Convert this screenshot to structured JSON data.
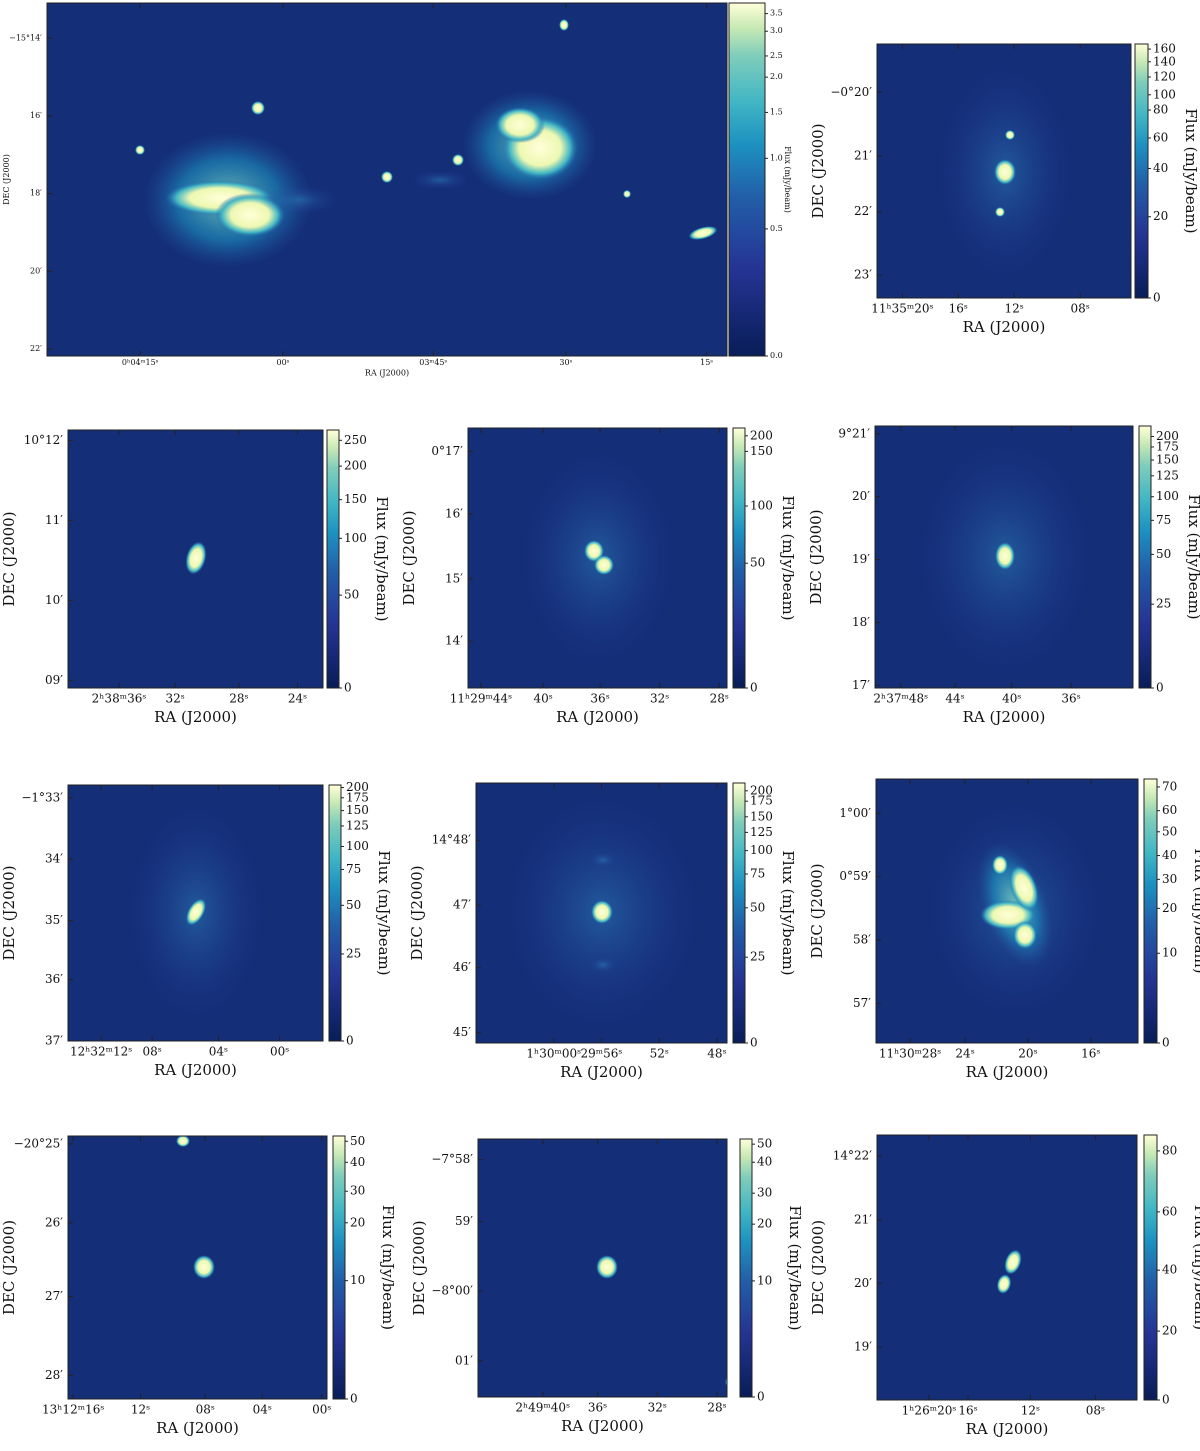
{
  "panels": [
    {
      "y_label": "DEC (J2000)",
      "x_label": "RA (J2000)",
      "colorbar_label": "Flux (mJy/beam)",
      "y_ticks": [
        "−15°14′",
        "16′",
        "18′",
        "20′",
        "22′"
      ],
      "x_ticks": [
        "0ʰ04ᵐ15ˢ",
        "00ˢ",
        "03ᵐ45ˢ",
        "30ˢ",
        "15ˢ"
      ],
      "colorbar_ticks": [
        "0.0",
        "0.5",
        "1.0",
        "1.5",
        "2.0",
        "2.5",
        "3.0",
        "3.5"
      ]
    },
    {
      "y_label": "DEC (J2000)",
      "x_label": "RA (J2000)",
      "colorbar_label": "Flux (mJy/beam)",
      "y_ticks": [
        "−0°20′",
        "21′",
        "22′",
        "23′"
      ],
      "x_ticks": [
        "11ʰ35ᵐ20ˢ",
        "16ˢ",
        "12ˢ",
        "08ˢ"
      ],
      "colorbar_ticks": [
        "0",
        "20",
        "40",
        "60",
        "80",
        "100",
        "120",
        "140",
        "160"
      ]
    },
    {
      "y_label": "DEC (J2000)",
      "x_label": "RA (J2000)",
      "colorbar_label": "Flux (mJy/beam)",
      "y_ticks": [
        "10°12′",
        "11′",
        "10′",
        "09′"
      ],
      "x_ticks": [
        "2ʰ38ᵐ36ˢ",
        "32ˢ",
        "28ˢ",
        "24ˢ"
      ],
      "colorbar_ticks": [
        "0",
        "50",
        "100",
        "150",
        "200",
        "250"
      ]
    },
    {
      "y_label": "DEC (J2000)",
      "x_label": "RA (J2000)",
      "colorbar_label": "Flux (mJy/beam)",
      "y_ticks": [
        "0°17′",
        "16′",
        "15′",
        "14′"
      ],
      "x_ticks": [
        "11ʰ29ᵐ44ˢ",
        "40ˢ",
        "36ˢ",
        "32ˢ",
        "28ˢ"
      ],
      "colorbar_ticks": [
        "0",
        "50",
        "100",
        "150",
        "200"
      ]
    },
    {
      "y_label": "DEC (J2000)",
      "x_label": "RA (J2000)",
      "colorbar_label": "Flux (mJy/beam)",
      "y_ticks": [
        "9°21′",
        "20′",
        "19′",
        "18′",
        "17′"
      ],
      "x_ticks": [
        "2ʰ37ᵐ48ˢ",
        "44ˢ",
        "40ˢ",
        "36ˢ"
      ],
      "colorbar_ticks": [
        "0",
        "25",
        "50",
        "75",
        "100",
        "125",
        "150",
        "175",
        "200"
      ]
    },
    {
      "y_label": "DEC (J2000)",
      "x_label": "RA (J2000)",
      "colorbar_label": "Flux (mJy/beam)",
      "y_ticks": [
        "−1°33′",
        "34′",
        "35′",
        "36′",
        "37′"
      ],
      "x_ticks": [
        "12ʰ32ᵐ12ˢ",
        "08ˢ",
        "04ˢ",
        "00ˢ"
      ],
      "colorbar_ticks": [
        "0",
        "25",
        "50",
        "75",
        "100",
        "125",
        "150",
        "175",
        "200"
      ]
    },
    {
      "y_label": "DEC (J2000)",
      "x_label": "RA (J2000)",
      "colorbar_label": "Flux (mJy/beam)",
      "y_ticks": [
        "14°48′",
        "47′",
        "46′",
        "45′"
      ],
      "x_ticks": [
        "1ʰ30ᵐ00ˢ",
        "29ᵐ56ˢ",
        "52ˢ",
        "48ˢ"
      ],
      "colorbar_ticks": [
        "0",
        "25",
        "50",
        "75",
        "100",
        "125",
        "150",
        "175",
        "200"
      ]
    },
    {
      "y_label": "DEC (J2000)",
      "x_label": "RA (J2000)",
      "colorbar_label": "Flux (mJy/beam)",
      "y_ticks": [
        "1°00′",
        "0°59′",
        "58′",
        "57′"
      ],
      "x_ticks": [
        "11ʰ30ᵐ28ˢ",
        "24ˢ",
        "20ˢ",
        "16ˢ"
      ],
      "colorbar_ticks": [
        "0",
        "10",
        "20",
        "30",
        "40",
        "50",
        "60",
        "70"
      ]
    },
    {
      "y_label": "DEC (J2000)",
      "x_label": "RA (J2000)",
      "colorbar_label": "Flux (mJy/beam)",
      "y_ticks": [
        "−20°25′",
        "26′",
        "27′",
        "28′"
      ],
      "x_ticks": [
        "13ʰ12ᵐ16ˢ",
        "12ˢ",
        "08ˢ",
        "04ˢ",
        "00ˢ"
      ],
      "colorbar_ticks": [
        "0",
        "10",
        "20",
        "30",
        "40",
        "50"
      ]
    },
    {
      "y_label": "DEC (J2000)",
      "x_label": "RA (J2000)",
      "colorbar_label": "Flux (mJy/beam)",
      "y_ticks": [
        "−7°58′",
        "59′",
        "−8°00′",
        "01′"
      ],
      "x_ticks": [
        "2ʰ49ᵐ40ˢ",
        "36ˢ",
        "32ˢ",
        "28ˢ"
      ],
      "colorbar_ticks": [
        "0",
        "10",
        "20",
        "30",
        "40",
        "50"
      ]
    },
    {
      "y_label": "DEC (J2000)",
      "x_label": "RA (J2000)",
      "colorbar_label": "Flux (mJy/beam)",
      "y_ticks": [
        "14°22′",
        "21′",
        "20′",
        "19′"
      ],
      "x_ticks": [
        "1ʰ26ᵐ20ˢ",
        "16ˢ",
        "12ˢ",
        "08ˢ"
      ],
      "colorbar_ticks": [
        "0",
        "20",
        "40",
        "60",
        "80"
      ]
    }
  ]
}
